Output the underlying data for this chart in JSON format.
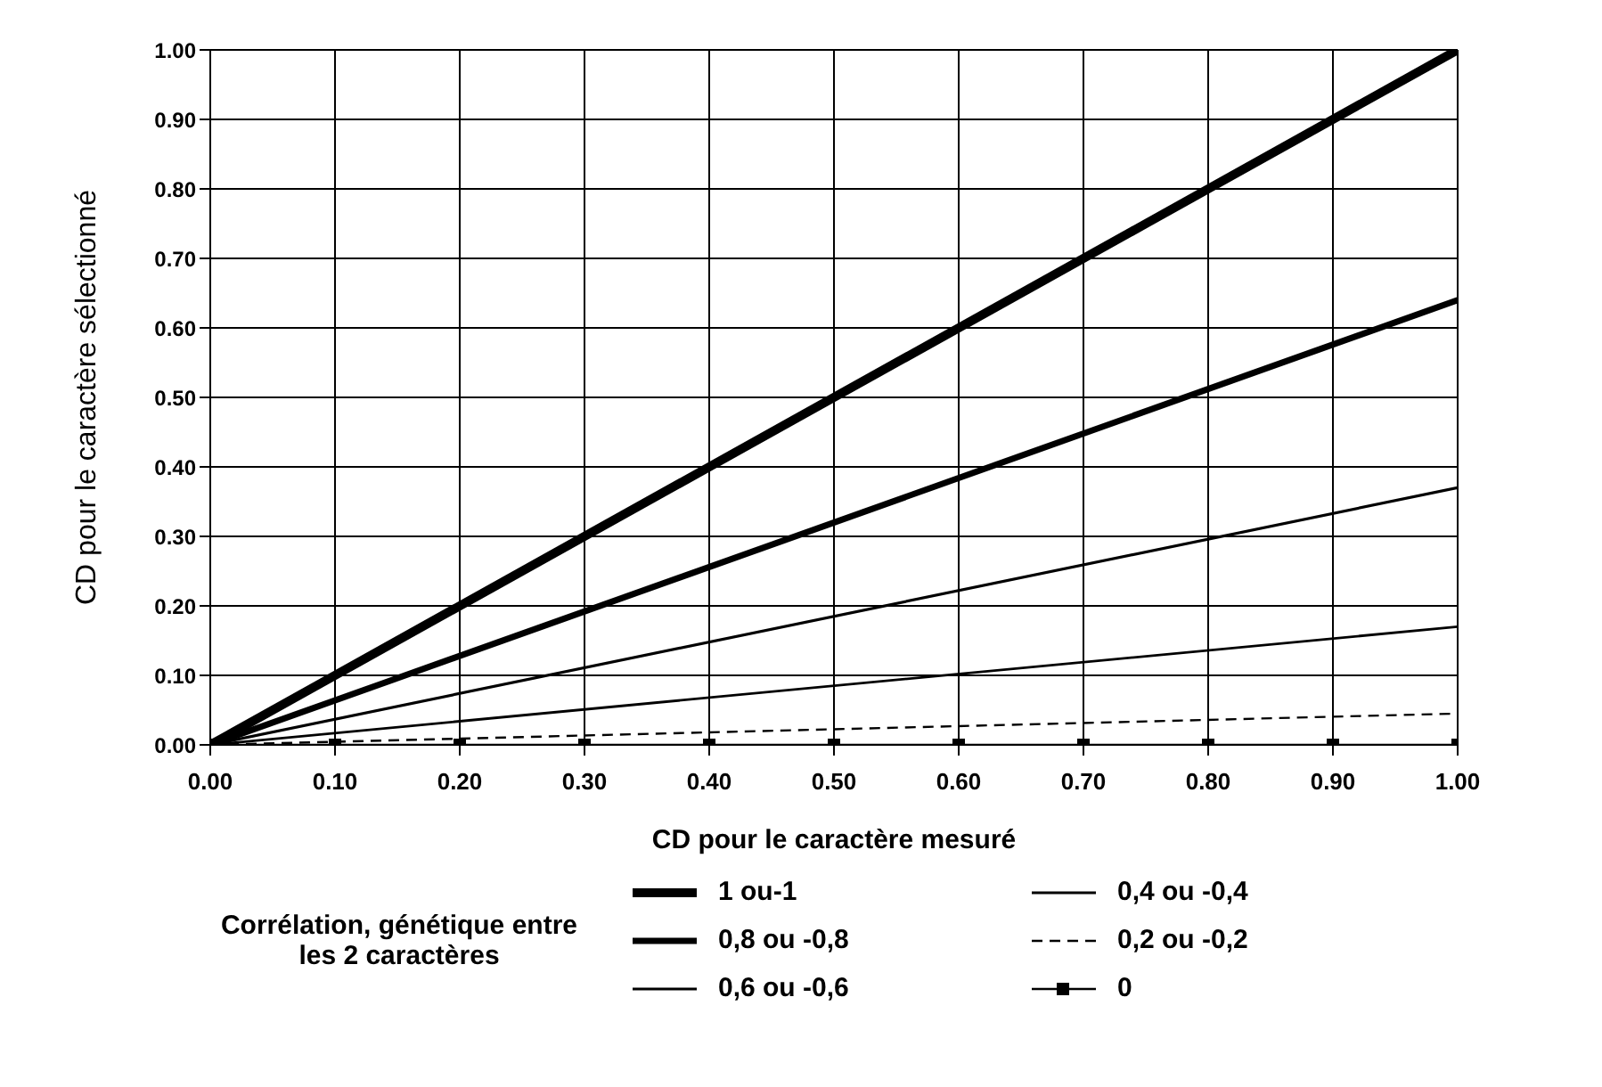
{
  "chart_data": {
    "type": "line",
    "xlabel": "CD pour le caractère mesuré",
    "ylabel": "CD pour le caractère sélectionné",
    "legend_title": "Corrélation, génétique entre les 2 caractères",
    "xlim": [
      0,
      1
    ],
    "ylim": [
      0,
      1
    ],
    "xticks": [
      {
        "value": 0,
        "label": "0.00"
      },
      {
        "value": 0.1,
        "label": "0.10"
      },
      {
        "value": 0.2,
        "label": "0.20"
      },
      {
        "value": 0.3,
        "label": "0.30"
      },
      {
        "value": 0.4,
        "label": "0.40"
      },
      {
        "value": 0.5,
        "label": "0.50"
      },
      {
        "value": 0.6,
        "label": "0.60"
      },
      {
        "value": 0.7,
        "label": "0.70"
      },
      {
        "value": 0.8,
        "label": "0.80"
      },
      {
        "value": 0.9,
        "label": "0.90"
      },
      {
        "value": 1,
        "label": "1.00"
      }
    ],
    "yticks": [
      {
        "value": 0,
        "label": "0.00"
      },
      {
        "value": 0.1,
        "label": "0.10"
      },
      {
        "value": 0.2,
        "label": "0.20"
      },
      {
        "value": 0.3,
        "label": "0.30"
      },
      {
        "value": 0.4,
        "label": "0.40"
      },
      {
        "value": 0.5,
        "label": "0.50"
      },
      {
        "value": 0.6,
        "label": "0.60"
      },
      {
        "value": 0.7,
        "label": "0.70"
      },
      {
        "value": 0.8,
        "label": "0.80"
      },
      {
        "value": 0.9,
        "label": "0.90"
      },
      {
        "value": 1,
        "label": "1.00"
      }
    ],
    "grid": true,
    "legend": "bottom",
    "line_style": "solid",
    "series": [
      {
        "name": "1 ou-1",
        "color": "#000000",
        "x": [
          0,
          1
        ],
        "values": [
          0,
          1
        ]
      },
      {
        "name": "0,8 ou -0,8",
        "color": "#000000",
        "x": [
          0,
          1
        ],
        "values": [
          0,
          0.64
        ]
      },
      {
        "name": "0,6 ou -0,6",
        "color": "#000000",
        "x": [
          0,
          1
        ],
        "values": [
          0,
          0.37
        ]
      },
      {
        "name": "0,4 ou -0,4",
        "color": "#000000",
        "x": [
          0,
          1
        ],
        "values": [
          0,
          0.17
        ]
      },
      {
        "name": "0,2 ou -0,2",
        "color": "#000000",
        "x": [
          0,
          1
        ],
        "values": [
          0,
          0.045
        ],
        "line_style": "dashed"
      },
      {
        "name": "0",
        "color": "#000000",
        "x": [
          0,
          0.1,
          0.2,
          0.3,
          0.4,
          0.5,
          0.6,
          0.7,
          0.8,
          0.9,
          1
        ],
        "values": [
          0,
          0,
          0,
          0,
          0,
          0,
          0,
          0,
          0,
          0,
          0
        ],
        "marker": "square"
      }
    ]
  }
}
